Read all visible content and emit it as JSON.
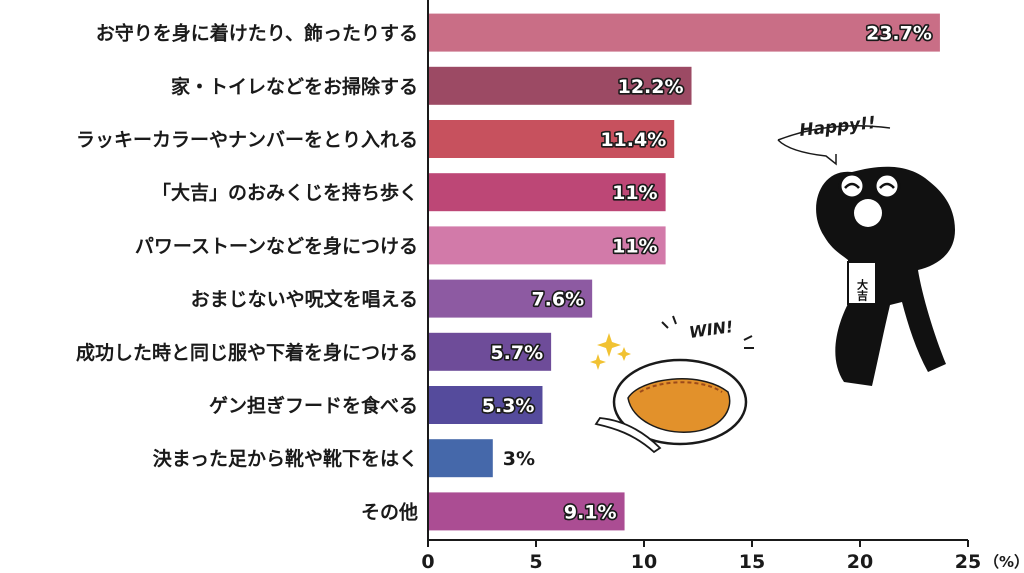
{
  "chart_data": {
    "type": "bar",
    "orientation": "horizontal",
    "categories": [
      "お守りを身に着けたり、飾ったりする",
      "家・トイレなどをお掃除する",
      "ラッキーカラーやナンバーをとり入れる",
      "「大吉」のおみくじを持ち歩く",
      "パワーストーンなどを身につける",
      "おまじないや呪文を唱える",
      "成功した時と同じ服や下着を身につける",
      "ゲン担ぎフードを食べる",
      "決まった足から靴や靴下をはく",
      "その他"
    ],
    "values": [
      23.7,
      12.2,
      11.4,
      11,
      11,
      7.6,
      5.7,
      5.3,
      3,
      9.1
    ],
    "value_labels": [
      "23.7%",
      "12.2%",
      "11.4%",
      "11%",
      "11%",
      "7.6%",
      "5.7%",
      "5.3%",
      "3%",
      "9.1%"
    ],
    "bar_colors": [
      "#c96e86",
      "#9c4a64",
      "#c7515e",
      "#bd4776",
      "#d27aa9",
      "#8d5aa2",
      "#6e4c99",
      "#554b9c",
      "#4568aa",
      "#ab4d93"
    ],
    "xlim": [
      0,
      25
    ],
    "xticks": [
      "0",
      "5",
      "10",
      "15",
      "20",
      "25"
    ],
    "unit": "（%）",
    "grid": false
  },
  "decorations": {
    "mascot_badge": "大吉",
    "mascot_speech": "Happy!!",
    "food_speech": "WIN!"
  }
}
